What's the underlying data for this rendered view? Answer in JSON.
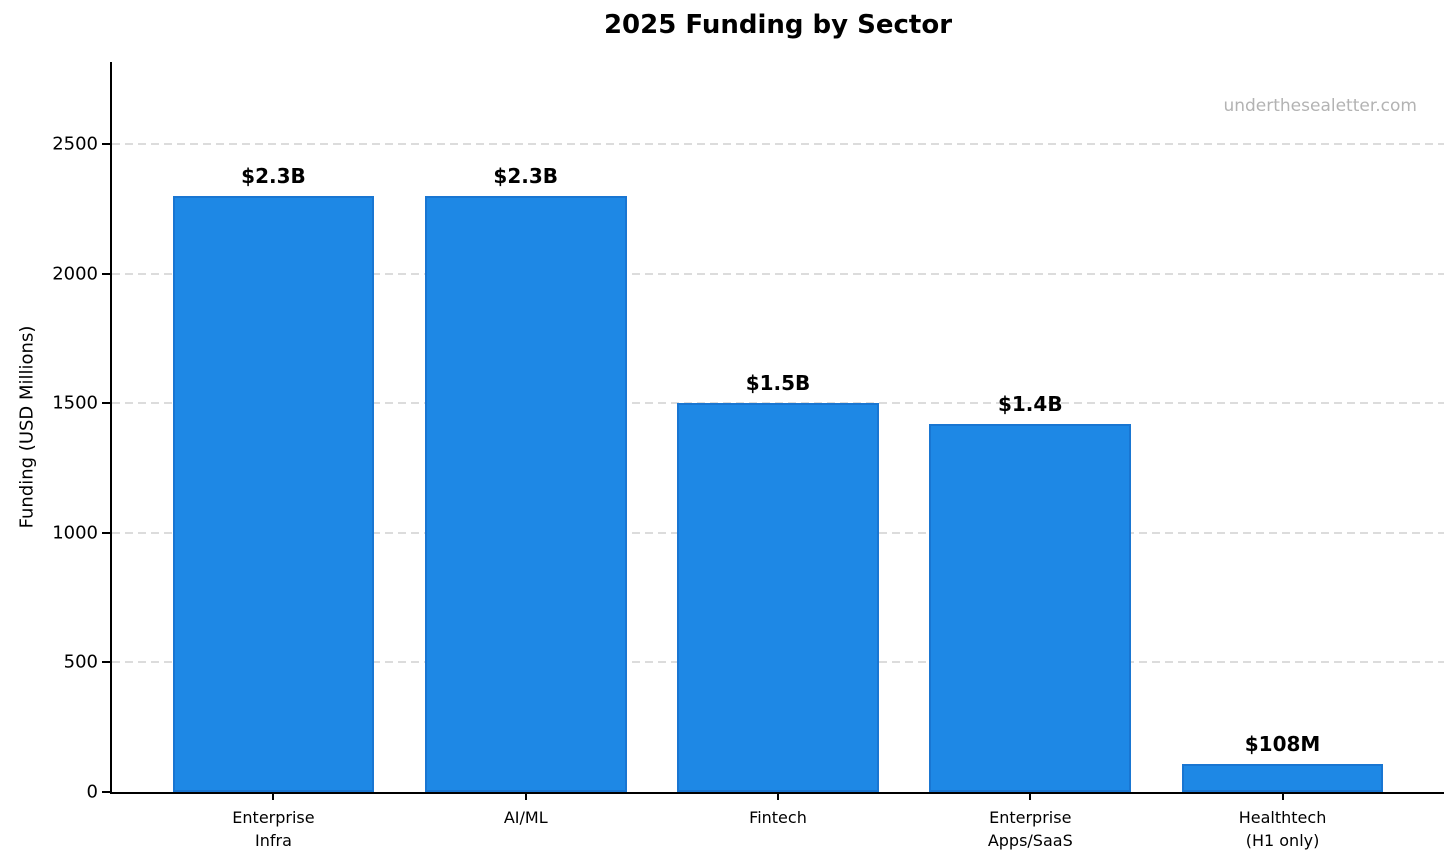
{
  "page": {
    "background_color": "#ffffff"
  },
  "chart_data": {
    "type": "bar",
    "title": "2025 Funding by Sector",
    "ylabel": "Funding (USD Millions)",
    "xlabel": "",
    "categories": [
      "Enterprise\nInfra",
      "AI/ML",
      "Fintech",
      "Enterprise\nApps/SaaS",
      "Healthtech\n(H1 only)"
    ],
    "values": [
      2300,
      2300,
      1500,
      1420,
      108
    ],
    "bar_labels": [
      "$2.3B",
      "$2.3B",
      "$1.5B",
      "$1.4B",
      "$108M"
    ],
    "yticks": [
      0,
      500,
      1000,
      1500,
      2000,
      2500
    ],
    "ylim": [
      0,
      2816
    ],
    "grid": "horizontal-dashed",
    "legend": "none",
    "bar_color": "#1E88E5",
    "bar_edge_color": "#1976D2",
    "gridline_color": "#dcdcdc",
    "text_color": "#000000",
    "watermark": "underthesealetter.com",
    "watermark_color": "#b3b3b3"
  }
}
